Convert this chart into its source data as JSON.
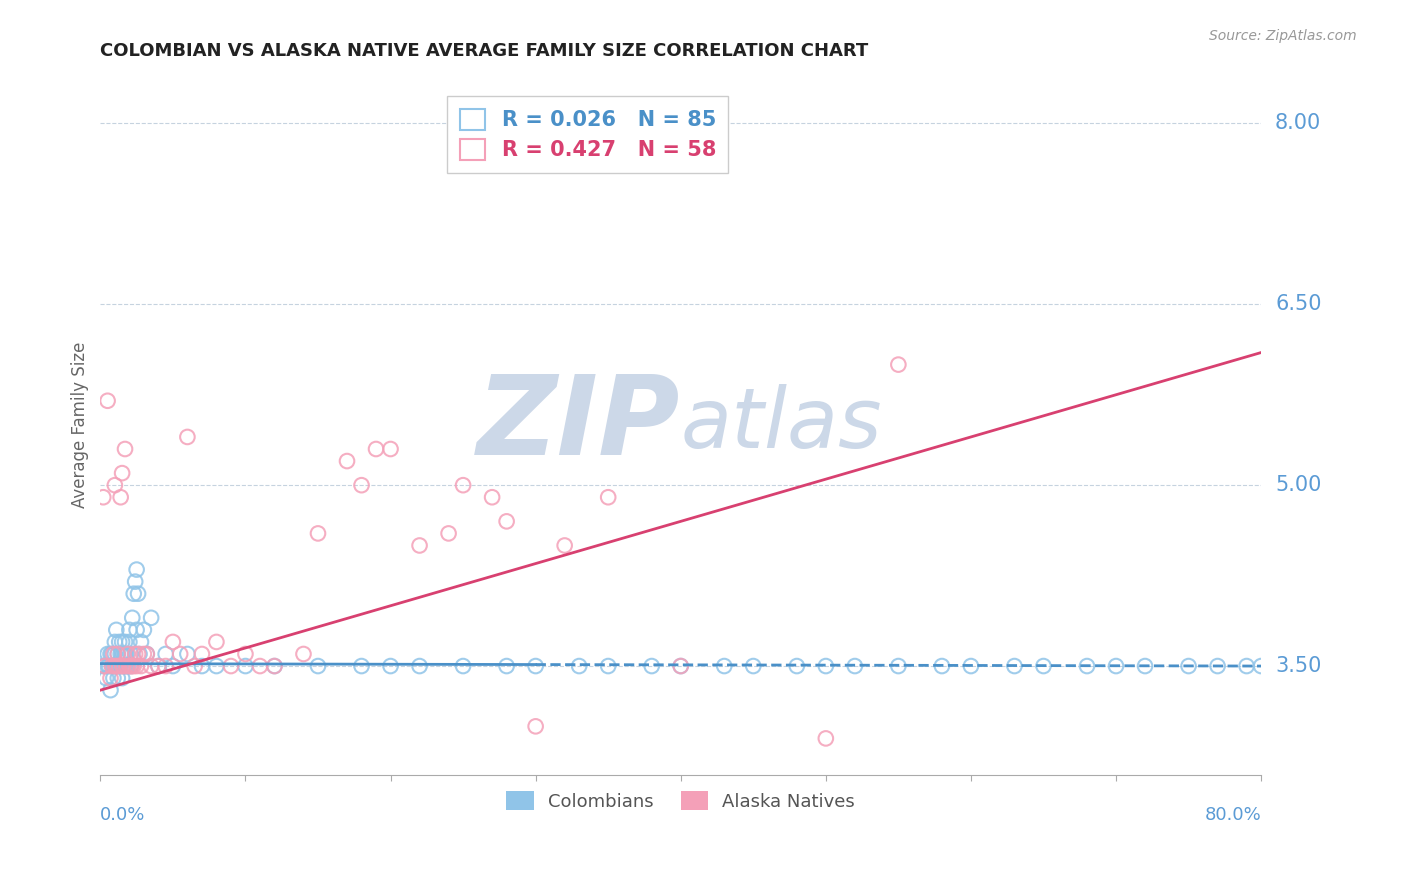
{
  "title": "COLOMBIAN VS ALASKA NATIVE AVERAGE FAMILY SIZE CORRELATION CHART",
  "source": "Source: ZipAtlas.com",
  "ylabel": "Average Family Size",
  "yticks": [
    3.5,
    5.0,
    6.5,
    8.0
  ],
  "xmin": 0.0,
  "xmax": 80.0,
  "ymin": 2.6,
  "ymax": 8.4,
  "colombians_R": 0.026,
  "colombians_N": 85,
  "alaska_R": 0.427,
  "alaska_N": 58,
  "color_blue": "#90c4e8",
  "color_pink": "#f4a0b8",
  "color_blue_text": "#4a90c8",
  "color_pink_text": "#d84070",
  "color_axis": "#5b9bd5",
  "background": "#ffffff",
  "grid_color": "#b8c8d8",
  "watermark_color": "#ccd8e8",
  "blue_trend_start": 3.52,
  "blue_trend_end": 3.5,
  "blue_cutoff_x": 30.0,
  "pink_trend_start": 3.3,
  "pink_trend_end": 6.1,
  "colombians_x": [
    0.2,
    0.3,
    0.4,
    0.5,
    0.5,
    0.6,
    0.7,
    0.7,
    0.8,
    0.8,
    0.9,
    0.9,
    1.0,
    1.0,
    1.0,
    1.1,
    1.1,
    1.2,
    1.2,
    1.3,
    1.3,
    1.4,
    1.4,
    1.5,
    1.5,
    1.5,
    1.6,
    1.6,
    1.7,
    1.7,
    1.7,
    1.8,
    1.8,
    1.9,
    2.0,
    2.0,
    2.1,
    2.1,
    2.2,
    2.3,
    2.4,
    2.5,
    2.5,
    2.6,
    2.7,
    2.8,
    3.0,
    3.2,
    3.5,
    4.0,
    4.5,
    5.0,
    6.0,
    7.0,
    8.0,
    10.0,
    12.0,
    15.0,
    18.0,
    20.0,
    22.0,
    25.0,
    28.0,
    30.0,
    33.0,
    35.0,
    38.0,
    40.0,
    43.0,
    45.0,
    48.0,
    50.0,
    52.0,
    55.0,
    58.0,
    60.0,
    63.0,
    65.0,
    68.0,
    70.0,
    72.0,
    75.0,
    77.0,
    79.0,
    80.0
  ],
  "colombians_y": [
    3.5,
    3.5,
    3.4,
    3.5,
    3.6,
    3.5,
    3.3,
    3.6,
    3.5,
    3.6,
    3.4,
    3.5,
    3.5,
    3.6,
    3.7,
    3.5,
    3.8,
    3.4,
    3.6,
    3.5,
    3.7,
    3.5,
    3.6,
    3.4,
    3.6,
    3.7,
    3.5,
    3.6,
    3.5,
    3.6,
    3.7,
    3.5,
    3.6,
    3.5,
    3.7,
    3.8,
    3.5,
    3.6,
    3.9,
    4.1,
    4.2,
    3.8,
    4.3,
    4.1,
    3.6,
    3.7,
    3.8,
    3.6,
    3.9,
    3.5,
    3.6,
    3.5,
    3.6,
    3.5,
    3.5,
    3.5,
    3.5,
    3.5,
    3.5,
    3.5,
    3.5,
    3.5,
    3.5,
    3.5,
    3.5,
    3.5,
    3.5,
    3.5,
    3.5,
    3.5,
    3.5,
    3.5,
    3.5,
    3.5,
    3.5,
    3.5,
    3.5,
    3.5,
    3.5,
    3.5,
    3.5,
    3.5,
    3.5,
    3.5,
    3.5
  ],
  "alaska_x": [
    0.2,
    0.3,
    0.5,
    0.7,
    0.8,
    0.9,
    1.0,
    1.0,
    1.1,
    1.2,
    1.3,
    1.4,
    1.5,
    1.5,
    1.6,
    1.7,
    1.8,
    1.9,
    2.0,
    2.1,
    2.2,
    2.3,
    2.4,
    2.5,
    2.6,
    2.8,
    3.0,
    3.2,
    3.5,
    4.0,
    4.5,
    5.0,
    5.5,
    6.0,
    6.5,
    7.0,
    8.0,
    9.0,
    10.0,
    11.0,
    12.0,
    14.0,
    15.0,
    17.0,
    18.0,
    19.0,
    20.0,
    22.0,
    24.0,
    25.0,
    27.0,
    28.0,
    30.0,
    32.0,
    35.0,
    40.0,
    50.0,
    55.0
  ],
  "alaska_y": [
    4.9,
    3.5,
    5.7,
    3.4,
    3.5,
    3.6,
    3.5,
    5.0,
    3.5,
    3.6,
    3.5,
    4.9,
    5.1,
    3.5,
    3.5,
    5.3,
    3.5,
    3.6,
    3.5,
    3.5,
    3.5,
    3.5,
    3.6,
    3.5,
    3.6,
    3.5,
    3.6,
    3.6,
    3.5,
    3.5,
    3.5,
    3.7,
    3.6,
    5.4,
    3.5,
    3.6,
    3.7,
    3.5,
    3.6,
    3.5,
    3.5,
    3.6,
    4.6,
    5.2,
    5.0,
    5.3,
    5.3,
    4.5,
    4.6,
    5.0,
    4.9,
    4.7,
    3.0,
    4.5,
    4.9,
    3.5,
    2.9,
    6.0
  ]
}
